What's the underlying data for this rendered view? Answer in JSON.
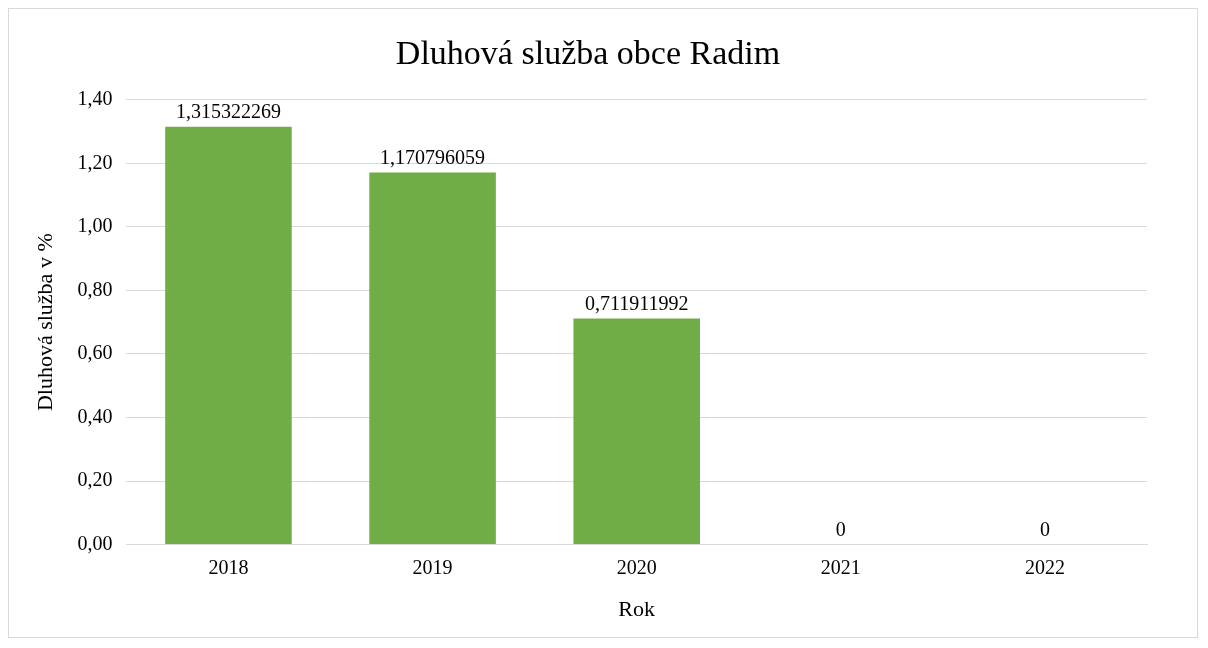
{
  "chart_data": {
    "type": "bar",
    "title": "Dluhová služba obce Radim",
    "xlabel": "Rok",
    "ylabel": "Dluhová služba v %",
    "categories": [
      "2018",
      "2019",
      "2020",
      "2021",
      "2022"
    ],
    "series": [
      {
        "color": "#70ad47",
        "values": [
          1.315322269,
          1.170796059,
          0.711911992,
          0,
          0
        ],
        "value_labels": [
          "1,315322269",
          "1,170796059",
          "0,711911992",
          "0",
          "0"
        ]
      }
    ],
    "ylim": [
      0,
      1.4
    ],
    "yticks": [
      {
        "value": 0,
        "label": "0,00"
      },
      {
        "value": 0.2,
        "label": "0,20"
      },
      {
        "value": 0.4,
        "label": "0,40"
      },
      {
        "value": 0.6,
        "label": "0,60"
      },
      {
        "value": 0.8,
        "label": "0,80"
      },
      {
        "value": 1,
        "label": "1,00"
      },
      {
        "value": 1.2,
        "label": "1,20"
      },
      {
        "value": 1.4,
        "label": "1,40"
      }
    ],
    "grid": "y",
    "legend": false
  }
}
